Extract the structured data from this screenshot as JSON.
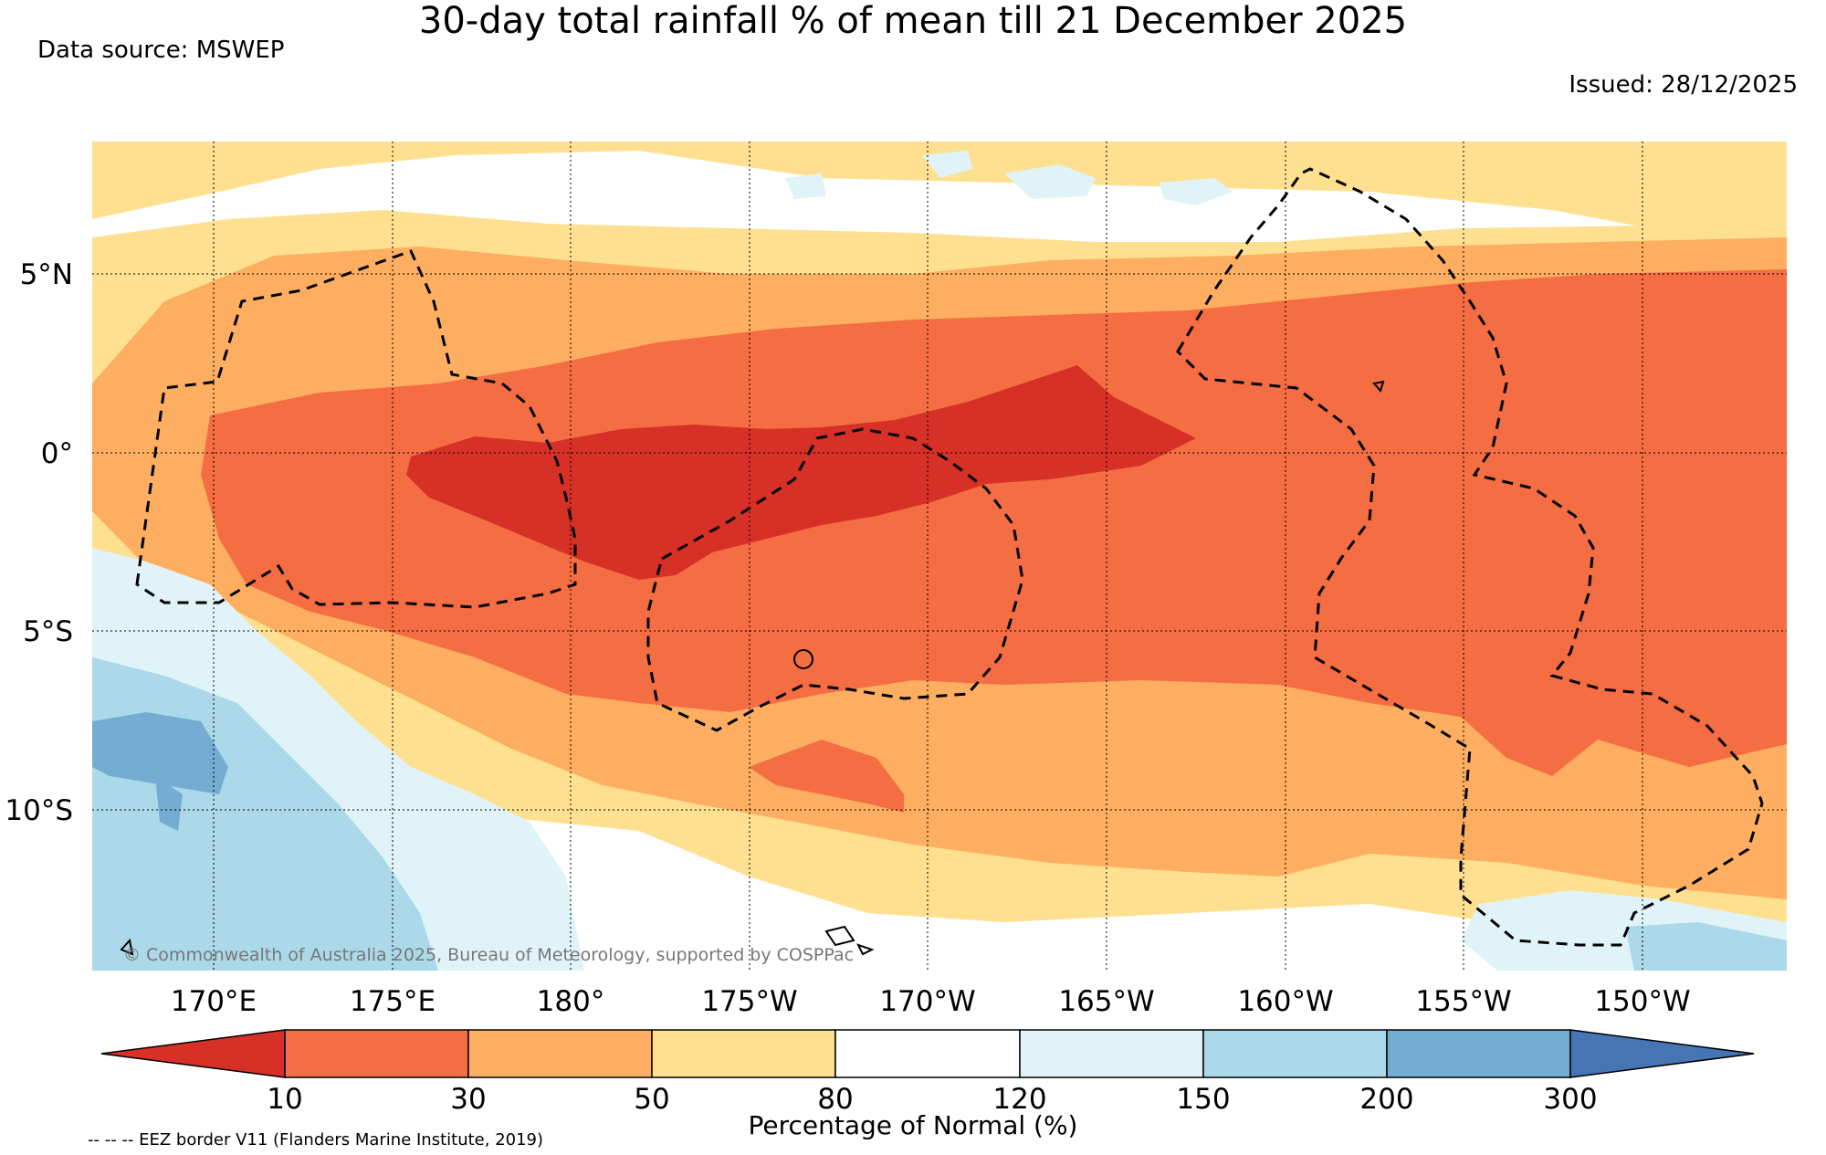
{
  "title": "30-day total rainfall % of mean till 21 December 2025",
  "data_source": "Data source: MSWEP",
  "issued": "Issued: 28/12/2025",
  "copyright": "© Commonwealth of Australia 2025, Bureau of Meteorology, supported by COSPPac",
  "lat_ticks": [
    "5°N",
    "0°",
    "5°S",
    "10°S"
  ],
  "lon_ticks": [
    "170°E",
    "175°E",
    "180°",
    "175°W",
    "170°W",
    "165°W",
    "160°W",
    "155°W",
    "150°W"
  ],
  "colorbar": {
    "label": "Percentage of Normal (%)",
    "ticks": [
      "10",
      "30",
      "50",
      "80",
      "120",
      "150",
      "200",
      "300"
    ],
    "colors": [
      "#d73027",
      "#f46d43",
      "#fdae61",
      "#fee090",
      "#ffffff",
      "#e0f3f8",
      "#abd9e9",
      "#74add1",
      "#4575b4"
    ]
  },
  "eez_note": "-- -- -- EEZ border V11 (Flanders Marine Institute, 2019)"
}
